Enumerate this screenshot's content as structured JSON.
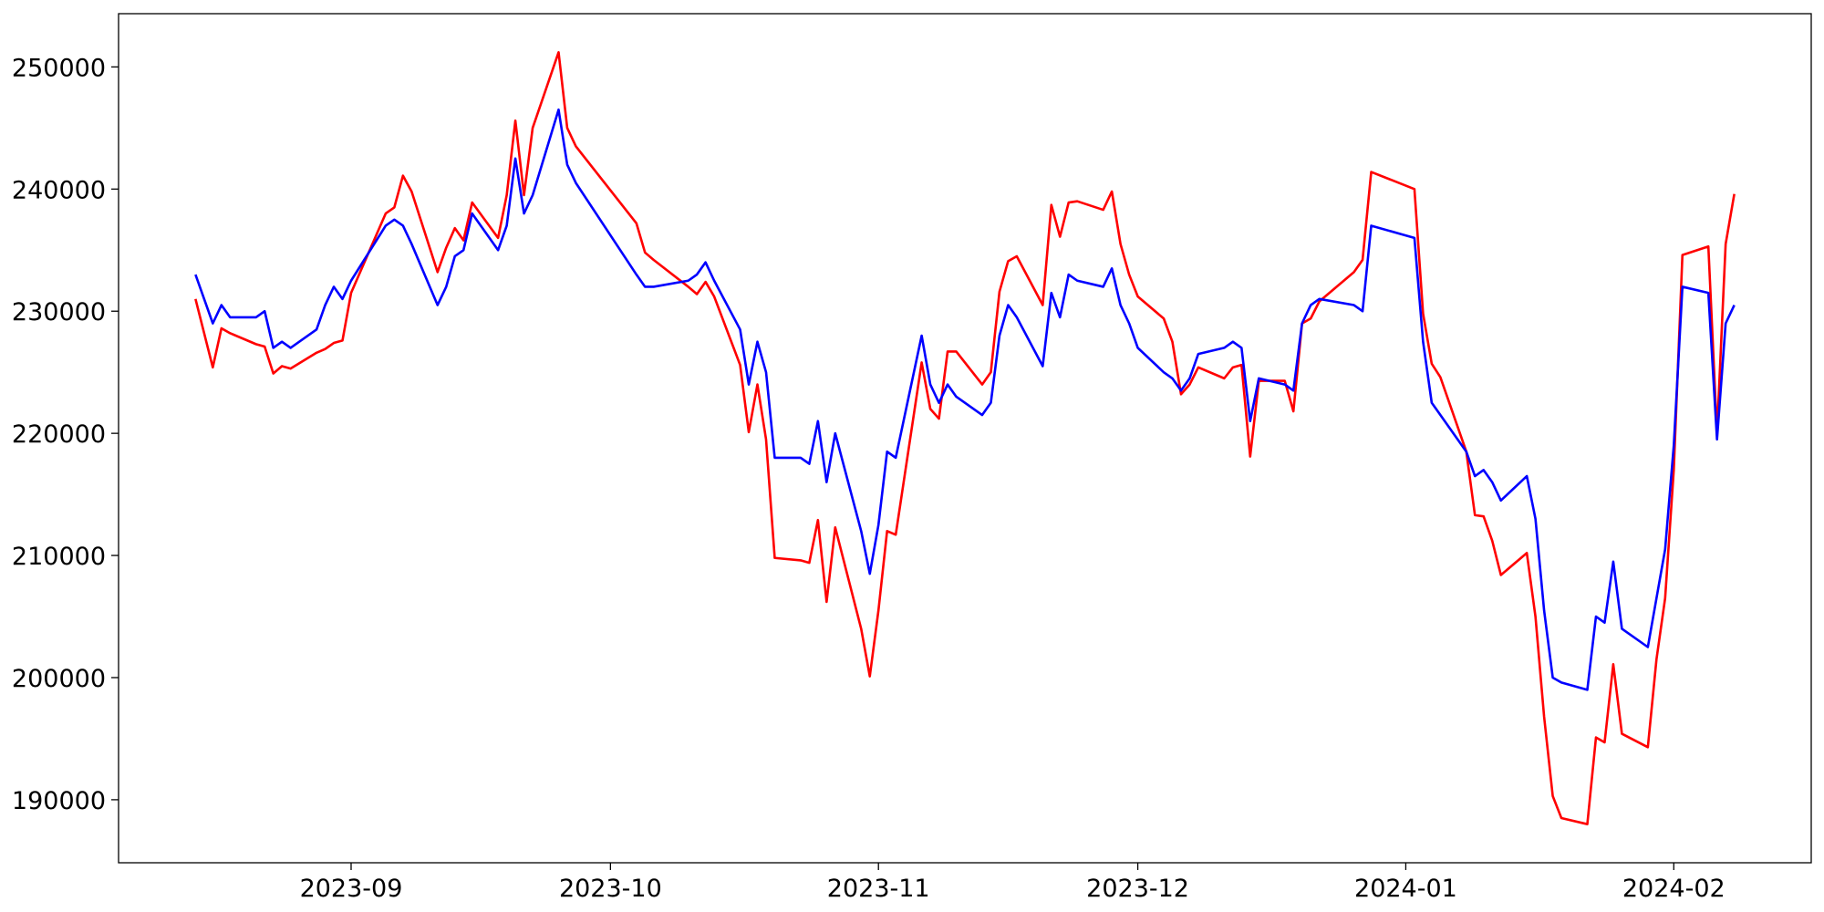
{
  "chart_data": {
    "type": "line",
    "x": [
      19583,
      19584,
      19585,
      19586,
      19587,
      19590,
      19591,
      19592,
      19593,
      19594,
      19597,
      19598,
      19599,
      19600,
      19601,
      19605,
      19606,
      19607,
      19608,
      19611,
      19612,
      19613,
      19614,
      19615,
      19618,
      19619,
      19620,
      19621,
      19622,
      19625,
      19626,
      19627,
      19634,
      19635,
      19636,
      19640,
      19641,
      19642,
      19643,
      19646,
      19647,
      19648,
      19649,
      19650,
      19653,
      19654,
      19655,
      19656,
      19657,
      19660,
      19661,
      19662,
      19663,
      19664,
      19667,
      19668,
      19669,
      19670,
      19671,
      19674,
      19675,
      19676,
      19677,
      19678,
      19681,
      19682,
      19683,
      19684,
      19685,
      19688,
      19689,
      19690,
      19691,
      19692,
      19695,
      19696,
      19697,
      19698,
      19699,
      19702,
      19703,
      19704,
      19705,
      19706,
      19709,
      19710,
      19711,
      19712,
      19713,
      19717,
      19718,
      19719,
      19724,
      19725,
      19726,
      19727,
      19730,
      19731,
      19732,
      19733,
      19734,
      19737,
      19738,
      19739,
      19740,
      19741,
      19744,
      19745,
      19746,
      19747,
      19748,
      19751,
      19752,
      19753,
      19754,
      19755,
      19758,
      19759,
      19760,
      19761
    ],
    "series": [
      {
        "color": "#ff0000",
        "values": [
          231000,
          228200,
          225400,
          228600,
          228200,
          227300,
          227100,
          224900,
          225500,
          225300,
          226600,
          226900,
          227400,
          227600,
          231500,
          238000,
          238500,
          241100,
          239800,
          233200,
          235200,
          236800,
          235800,
          238900,
          236000,
          239500,
          245600,
          239500,
          245000,
          251200,
          245000,
          243500,
          237200,
          234800,
          234200,
          232000,
          231400,
          232400,
          231200,
          225600,
          220100,
          224000,
          219500,
          209800,
          209600,
          209400,
          212900,
          206200,
          212300,
          204000,
          200100,
          205500,
          212000,
          211700,
          225800,
          222000,
          221200,
          226700,
          226700,
          224000,
          225000,
          231600,
          234100,
          234500,
          230500,
          238700,
          236100,
          238900,
          239000,
          238300,
          239800,
          235500,
          233000,
          231200,
          229400,
          227500,
          223200,
          224000,
          225400,
          224500,
          225400,
          225600,
          218100,
          224300,
          224300,
          221800,
          229000,
          229400,
          230800,
          233200,
          234200,
          241400,
          240000,
          229800,
          225700,
          224600,
          218500,
          213300,
          213200,
          211200,
          208400,
          210200,
          205000,
          196800,
          190300,
          188500,
          188000,
          195100,
          194700,
          201100,
          195400,
          194300,
          201500,
          206500,
          217000,
          234600,
          235300,
          220000,
          235500,
          239600
        ]
      },
      {
        "color": "#0000ff",
        "values": [
          233000,
          231000,
          229000,
          230500,
          229500,
          229500,
          230000,
          227000,
          227500,
          227000,
          228500,
          230500,
          232000,
          231000,
          232500,
          237000,
          237500,
          237000,
          235500,
          230500,
          232000,
          234500,
          235000,
          238000,
          235000,
          237000,
          242500,
          238000,
          239500,
          246500,
          242000,
          240500,
          233000,
          232000,
          232000,
          232500,
          233000,
          234000,
          232500,
          228500,
          224000,
          227500,
          225000,
          218000,
          218000,
          217500,
          221000,
          216000,
          220000,
          212000,
          208500,
          212500,
          218500,
          218000,
          228000,
          224000,
          222500,
          224000,
          223000,
          221500,
          222500,
          228000,
          230500,
          229500,
          225500,
          231500,
          229500,
          233000,
          232500,
          232000,
          233500,
          230500,
          229000,
          227000,
          225000,
          224500,
          223500,
          224500,
          226500,
          227000,
          227500,
          227000,
          221000,
          224500,
          224000,
          223500,
          229000,
          230500,
          231000,
          230500,
          230000,
          237000,
          236000,
          227500,
          222500,
          221500,
          218500,
          216500,
          217000,
          216000,
          214500,
          216500,
          213000,
          205500,
          200000,
          199600,
          199000,
          205000,
          204500,
          209500,
          204000,
          202500,
          206500,
          210500,
          219000,
          232000,
          231500,
          219500,
          229000,
          230500
        ]
      }
    ],
    "xlim": [
      19574.1,
      19769.9
    ],
    "xticks": [
      {
        "value": 19601,
        "label": "2023-09"
      },
      {
        "value": 19631,
        "label": "2023-10"
      },
      {
        "value": 19662,
        "label": "2023-11"
      },
      {
        "value": 19692,
        "label": "2023-12"
      },
      {
        "value": 19723,
        "label": "2024-01"
      },
      {
        "value": 19754,
        "label": "2024-02"
      }
    ],
    "ylim": [
      184840,
      254360
    ],
    "yticks": [
      190000,
      200000,
      210000,
      220000,
      230000,
      240000,
      250000
    ],
    "grid": false
  }
}
